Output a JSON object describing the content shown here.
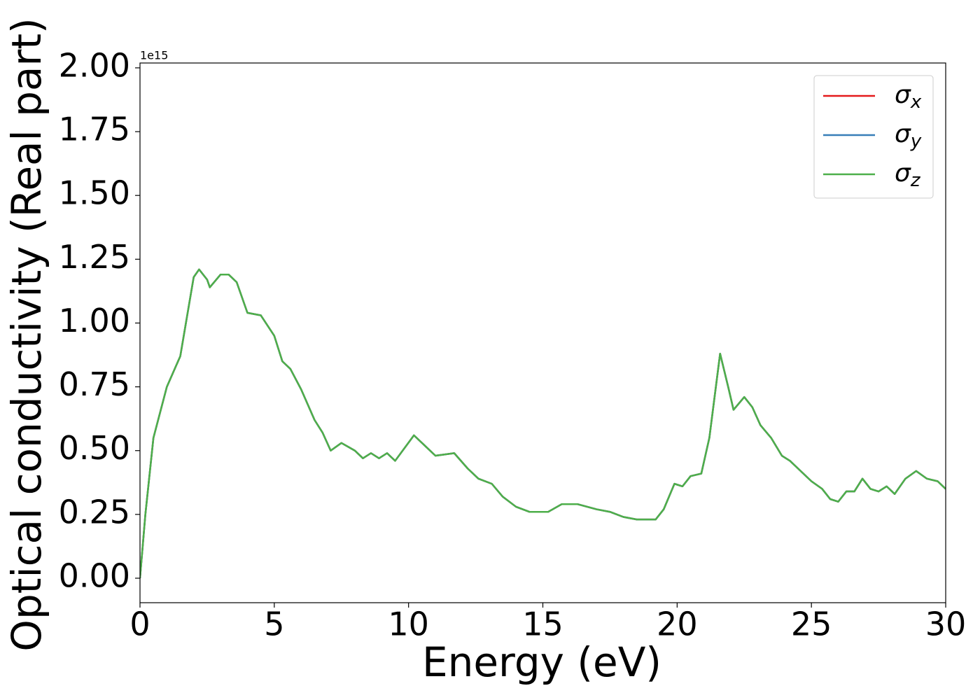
{
  "chart_data": {
    "type": "line",
    "xlabel": "Energy (eV)",
    "ylabel": "Optical conductivity (Real part)",
    "y_offset_label": "1e15",
    "xlim": [
      0,
      30
    ],
    "xticks": [
      0,
      5,
      10,
      15,
      20,
      25,
      30
    ],
    "ylim": [
      -0.096,
      2.019
    ],
    "yticks": [
      {
        "value": 0,
        "label": "0.00"
      },
      0.25,
      {
        "value": 0.5,
        "label": "0.50"
      },
      0.75,
      {
        "value": 1,
        "label": "1.00"
      },
      1.25,
      {
        "value": 1.5,
        "label": "1.50"
      },
      1.75,
      {
        "value": 2,
        "label": "2.00"
      }
    ],
    "legend": "upper right",
    "x": [
      0,
      0.2,
      0.5,
      1.0,
      1.5,
      2.0,
      2.2,
      2.5,
      2.6,
      3.0,
      3.3,
      3.6,
      4.0,
      4.5,
      5.0,
      5.3,
      5.6,
      6.0,
      6.5,
      6.8,
      7.1,
      7.5,
      8.0,
      8.3,
      8.6,
      8.9,
      9.2,
      9.5,
      10.2,
      10.6,
      11.0,
      11.7,
      12.2,
      12.6,
      13.1,
      13.5,
      14.0,
      14.5,
      15.2,
      15.7,
      16.3,
      17.0,
      17.5,
      18.0,
      18.5,
      19.2,
      19.5,
      19.9,
      20.2,
      20.5,
      20.9,
      21.2,
      21.6,
      21.9,
      22.1,
      22.5,
      22.8,
      23.1,
      23.5,
      23.9,
      24.2,
      24.6,
      25.0,
      25.4,
      25.7,
      26.0,
      26.3,
      26.6,
      26.9,
      27.2,
      27.5,
      27.8,
      28.1,
      28.5,
      28.9,
      29.3,
      29.7,
      30.0
    ],
    "series": [
      {
        "name": "σx",
        "color": "#e41a1c",
        "values": [
          0.0,
          0.25,
          0.55,
          0.75,
          0.87,
          1.18,
          1.21,
          1.17,
          1.14,
          1.19,
          1.19,
          1.16,
          1.04,
          1.03,
          0.95,
          0.85,
          0.82,
          0.74,
          0.62,
          0.57,
          0.5,
          0.53,
          0.5,
          0.47,
          0.49,
          0.47,
          0.49,
          0.46,
          0.56,
          0.52,
          0.48,
          0.49,
          0.43,
          0.39,
          0.37,
          0.32,
          0.28,
          0.26,
          0.26,
          0.29,
          0.29,
          0.27,
          0.26,
          0.24,
          0.23,
          0.23,
          0.27,
          0.37,
          0.36,
          0.4,
          0.41,
          0.55,
          0.88,
          0.75,
          0.66,
          0.71,
          0.67,
          0.6,
          0.55,
          0.48,
          0.46,
          0.42,
          0.38,
          0.35,
          0.31,
          0.3,
          0.34,
          0.34,
          0.39,
          0.35,
          0.34,
          0.36,
          0.33,
          0.39,
          0.42,
          0.39,
          0.38,
          0.35
        ]
      },
      {
        "name": "σy",
        "color": "#377eb8",
        "values": [
          0.0,
          0.25,
          0.55,
          0.75,
          0.87,
          1.18,
          1.21,
          1.17,
          1.14,
          1.19,
          1.19,
          1.16,
          1.04,
          1.03,
          0.95,
          0.85,
          0.82,
          0.74,
          0.62,
          0.57,
          0.5,
          0.53,
          0.5,
          0.47,
          0.49,
          0.47,
          0.49,
          0.46,
          0.56,
          0.52,
          0.48,
          0.49,
          0.43,
          0.39,
          0.37,
          0.32,
          0.28,
          0.26,
          0.26,
          0.29,
          0.29,
          0.27,
          0.26,
          0.24,
          0.23,
          0.23,
          0.27,
          0.37,
          0.36,
          0.4,
          0.41,
          0.55,
          0.88,
          0.75,
          0.66,
          0.71,
          0.67,
          0.6,
          0.55,
          0.48,
          0.46,
          0.42,
          0.38,
          0.35,
          0.31,
          0.3,
          0.34,
          0.34,
          0.39,
          0.35,
          0.34,
          0.36,
          0.33,
          0.39,
          0.42,
          0.39,
          0.38,
          0.35
        ]
      },
      {
        "name": "σz",
        "color": "#4daf4a",
        "values": [
          0.0,
          0.25,
          0.55,
          0.75,
          0.87,
          1.18,
          1.21,
          1.17,
          1.14,
          1.19,
          1.19,
          1.16,
          1.04,
          1.03,
          0.95,
          0.85,
          0.82,
          0.74,
          0.62,
          0.57,
          0.5,
          0.53,
          0.5,
          0.47,
          0.49,
          0.47,
          0.49,
          0.46,
          0.56,
          0.52,
          0.48,
          0.49,
          0.43,
          0.39,
          0.37,
          0.32,
          0.28,
          0.26,
          0.26,
          0.29,
          0.29,
          0.27,
          0.26,
          0.24,
          0.23,
          0.23,
          0.27,
          0.37,
          0.36,
          0.4,
          0.41,
          0.55,
          0.88,
          0.75,
          0.66,
          0.71,
          0.67,
          0.6,
          0.55,
          0.48,
          0.46,
          0.42,
          0.38,
          0.35,
          0.31,
          0.3,
          0.34,
          0.34,
          0.39,
          0.35,
          0.34,
          0.36,
          0.33,
          0.39,
          0.42,
          0.39,
          0.38,
          0.35
        ]
      }
    ]
  }
}
